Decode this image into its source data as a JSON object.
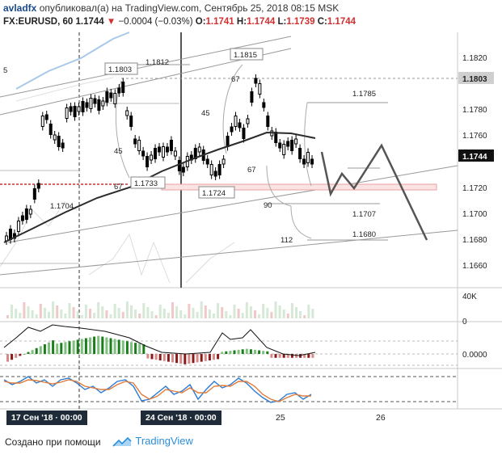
{
  "header": {
    "author": "avladfx",
    "published_text": "опубликовал(а) на TradingView.com, Сентябрь 25, 2018 08:15 MSK",
    "symbol": "FX:EURUSD, 60",
    "last": "1.1744",
    "change": "−0.0004 (−0.03%)",
    "o_label": "O:",
    "o_value": "1.1741",
    "h_label": "H:",
    "h_value": "1.1744",
    "l_label": "L:",
    "l_value": "1.1739",
    "c_label": "C:",
    "c_value": "1.1744"
  },
  "price_axis": {
    "ticks": [
      "1.1820",
      "1.1803",
      "1.1780",
      "1.1760",
      "1.1744",
      "1.1720",
      "1.1700",
      "1.1680",
      "1.1660"
    ],
    "highlight_gray": "1.1803",
    "highlight_current": "1.1744"
  },
  "annotations": {
    "level_1812": "1.1812",
    "level_1815": "1.1815",
    "level_1803": "1.1803",
    "level_1785": "1.1785",
    "level_1733": "1.1733",
    "level_1724": "1.1724",
    "level_1704": "1.1704",
    "level_1707": "1.1707",
    "level_1680": "1.1680",
    "fan_67_top": "67",
    "fan_45_top": "45",
    "fan_45_left": "45",
    "fan_67_left": "67",
    "fan_67_mid": "67",
    "fan_90": "90",
    "fan_112": "112",
    "left_5": "5"
  },
  "volume_axis": {
    "label_40k": "40K",
    "label_0": "0"
  },
  "macd_axis": {
    "label": "0.0000"
  },
  "time_axis": {
    "pill_left": "17 Сен '18 · 00:00",
    "pill_right": "24 Сен '18 · 00:00",
    "tick_25": "25",
    "tick_26": "26"
  },
  "footer": {
    "created_with": "Создано при помощи",
    "brand": "TradingView"
  },
  "colors": {
    "accent_red": "#d32f2f",
    "brand_blue": "#2a8fdb",
    "candle": "#000000",
    "macd_green": "#1b7d1b",
    "macd_red": "#8b1a1a"
  }
}
